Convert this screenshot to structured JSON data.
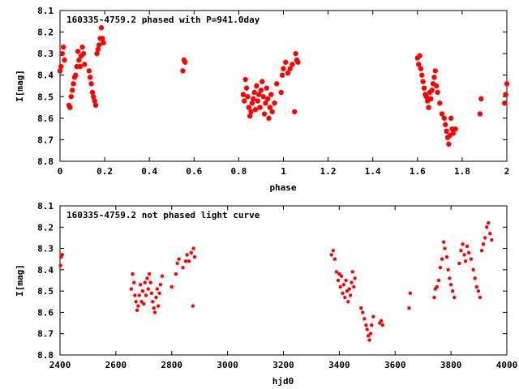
{
  "marker_color": "#ff0000",
  "chart_data": [
    {
      "type": "scatter",
      "title": "160335-4759.2 phased with P=941.0day",
      "xlabel": "phase",
      "ylabel": "I[mag]",
      "xlim": [
        0,
        2
      ],
      "ylim": [
        8.8,
        8.1
      ],
      "y_inverted": true,
      "grid": false,
      "legend": "none",
      "xticks": [
        "0",
        "0.2",
        "0.4",
        "0.6",
        "0.8",
        "1",
        "1.2",
        "1.4",
        "1.6",
        "1.8",
        "2"
      ],
      "xtick_values": [
        0,
        0.2,
        0.4,
        0.6,
        0.8,
        1,
        1.2,
        1.4,
        1.6,
        1.8,
        2
      ],
      "yticks": [
        "8.1",
        "8.2",
        "8.3",
        "8.4",
        "8.5",
        "8.6",
        "8.7",
        "8.8"
      ],
      "ytick_values": [
        8.1,
        8.2,
        8.3,
        8.4,
        8.5,
        8.6,
        8.7,
        8.8
      ],
      "points": [
        [
          0.0,
          8.38
        ],
        [
          0.005,
          8.36
        ],
        [
          0.01,
          8.3
        ],
        [
          0.015,
          8.27
        ],
        [
          0.02,
          8.33
        ],
        [
          0.04,
          8.54
        ],
        [
          0.045,
          8.55
        ],
        [
          0.05,
          8.5
        ],
        [
          0.055,
          8.47
        ],
        [
          0.06,
          8.44
        ],
        [
          0.065,
          8.41
        ],
        [
          0.07,
          8.4
        ],
        [
          0.075,
          8.36
        ],
        [
          0.08,
          8.29
        ],
        [
          0.085,
          8.33
        ],
        [
          0.09,
          8.36
        ],
        [
          0.095,
          8.31
        ],
        [
          0.1,
          8.27
        ],
        [
          0.105,
          8.3
        ],
        [
          0.11,
          8.35
        ],
        [
          0.13,
          8.38
        ],
        [
          0.135,
          8.41
        ],
        [
          0.14,
          8.44
        ],
        [
          0.145,
          8.48
        ],
        [
          0.15,
          8.5
        ],
        [
          0.155,
          8.52
        ],
        [
          0.16,
          8.54
        ],
        [
          0.165,
          8.3
        ],
        [
          0.17,
          8.28
        ],
        [
          0.175,
          8.26
        ],
        [
          0.18,
          8.23
        ],
        [
          0.185,
          8.18
        ],
        [
          0.19,
          8.23
        ],
        [
          0.195,
          8.25
        ],
        [
          0.55,
          8.38
        ],
        [
          0.555,
          8.33
        ],
        [
          0.56,
          8.34
        ],
        [
          0.82,
          8.49
        ],
        [
          0.825,
          8.52
        ],
        [
          0.83,
          8.42
        ],
        [
          0.835,
          8.46
        ],
        [
          0.84,
          8.5
        ],
        [
          0.845,
          8.55
        ],
        [
          0.85,
          8.59
        ],
        [
          0.855,
          8.57
        ],
        [
          0.86,
          8.53
        ],
        [
          0.865,
          8.51
        ],
        [
          0.87,
          8.48
        ],
        [
          0.875,
          8.56
        ],
        [
          0.88,
          8.45
        ],
        [
          0.885,
          8.52
        ],
        [
          0.89,
          8.49
        ],
        [
          0.895,
          8.55
        ],
        [
          0.9,
          8.47
        ],
        [
          0.905,
          8.43
        ],
        [
          0.91,
          8.5
        ],
        [
          0.915,
          8.58
        ],
        [
          0.92,
          8.53
        ],
        [
          0.925,
          8.46
        ],
        [
          0.93,
          8.51
        ],
        [
          0.935,
          8.6
        ],
        [
          0.94,
          8.55
        ],
        [
          0.945,
          8.49
        ],
        [
          0.95,
          8.57
        ],
        [
          0.96,
          8.53
        ],
        [
          0.97,
          8.44
        ],
        [
          0.99,
          8.48
        ],
        [
          0.995,
          8.4
        ],
        [
          1.0,
          8.37
        ],
        [
          1.01,
          8.34
        ],
        [
          1.02,
          8.39
        ],
        [
          1.03,
          8.37
        ],
        [
          1.04,
          8.35
        ],
        [
          1.05,
          8.57
        ],
        [
          1.055,
          8.3
        ],
        [
          1.06,
          8.33
        ],
        [
          1.065,
          8.34
        ],
        [
          1.6,
          8.32
        ],
        [
          1.605,
          8.35
        ],
        [
          1.61,
          8.31
        ],
        [
          1.615,
          8.37
        ],
        [
          1.62,
          8.4
        ],
        [
          1.625,
          8.43
        ],
        [
          1.63,
          8.46
        ],
        [
          1.635,
          8.49
        ],
        [
          1.64,
          8.5
        ],
        [
          1.645,
          8.52
        ],
        [
          1.65,
          8.55
        ],
        [
          1.655,
          8.48
        ],
        [
          1.66,
          8.51
        ],
        [
          1.665,
          8.47
        ],
        [
          1.67,
          8.44
        ],
        [
          1.675,
          8.41
        ],
        [
          1.68,
          8.38
        ],
        [
          1.685,
          8.45
        ],
        [
          1.69,
          8.48
        ],
        [
          1.7,
          8.53
        ],
        [
          1.71,
          8.58
        ],
        [
          1.72,
          8.6
        ],
        [
          1.725,
          8.63
        ],
        [
          1.73,
          8.66
        ],
        [
          1.735,
          8.69
        ],
        [
          1.74,
          8.72
        ],
        [
          1.745,
          8.68
        ],
        [
          1.75,
          8.6
        ],
        [
          1.755,
          8.65
        ],
        [
          1.76,
          8.67
        ],
        [
          1.77,
          8.65
        ],
        [
          1.88,
          8.58
        ],
        [
          1.885,
          8.51
        ],
        [
          1.99,
          8.53
        ],
        [
          1.995,
          8.49
        ],
        [
          2.0,
          8.44
        ]
      ]
    },
    {
      "type": "scatter",
      "title": "160335-4759.2 not phased light curve",
      "xlabel": "hjd0",
      "ylabel": "I[mag]",
      "xlim": [
        2400,
        4000
      ],
      "ylim": [
        8.8,
        8.1
      ],
      "y_inverted": true,
      "grid": false,
      "legend": "none",
      "xticks": [
        "2400",
        "2600",
        "2800",
        "3000",
        "3200",
        "3400",
        "3600",
        "3800",
        "4000"
      ],
      "xtick_values": [
        2400,
        2600,
        2800,
        3000,
        3200,
        3400,
        3600,
        3800,
        4000
      ],
      "yticks": [
        "8.1",
        "8.2",
        "8.3",
        "8.4",
        "8.5",
        "8.6",
        "8.7",
        "8.8"
      ],
      "ytick_values": [
        8.1,
        8.2,
        8.3,
        8.4,
        8.5,
        8.6,
        8.7,
        8.8
      ],
      "points": [
        [
          2402,
          8.38
        ],
        [
          2404,
          8.34
        ],
        [
          2406,
          8.33
        ],
        [
          2408,
          8.33
        ],
        [
          2655,
          8.49
        ],
        [
          2660,
          8.42
        ],
        [
          2665,
          8.46
        ],
        [
          2668,
          8.52
        ],
        [
          2672,
          8.55
        ],
        [
          2676,
          8.59
        ],
        [
          2680,
          8.57
        ],
        [
          2684,
          8.52
        ],
        [
          2688,
          8.47
        ],
        [
          2692,
          8.55
        ],
        [
          2696,
          8.5
        ],
        [
          2700,
          8.56
        ],
        [
          2704,
          8.46
        ],
        [
          2708,
          8.52
        ],
        [
          2712,
          8.44
        ],
        [
          2716,
          8.49
        ],
        [
          2720,
          8.42
        ],
        [
          2724,
          8.46
        ],
        [
          2728,
          8.51
        ],
        [
          2732,
          8.55
        ],
        [
          2736,
          8.58
        ],
        [
          2740,
          8.6
        ],
        [
          2744,
          8.53
        ],
        [
          2748,
          8.49
        ],
        [
          2752,
          8.57
        ],
        [
          2756,
          8.51
        ],
        [
          2760,
          8.47
        ],
        [
          2766,
          8.43
        ],
        [
          2800,
          8.48
        ],
        [
          2815,
          8.42
        ],
        [
          2820,
          8.37
        ],
        [
          2826,
          8.35
        ],
        [
          2840,
          8.39
        ],
        [
          2850,
          8.36
        ],
        [
          2855,
          8.33
        ],
        [
          2862,
          8.36
        ],
        [
          2870,
          8.32
        ],
        [
          2876,
          8.57
        ],
        [
          2878,
          8.3
        ],
        [
          2882,
          8.34
        ],
        [
          3372,
          8.33
        ],
        [
          3378,
          8.31
        ],
        [
          3384,
          8.35
        ],
        [
          3390,
          8.41
        ],
        [
          3396,
          8.45
        ],
        [
          3400,
          8.42
        ],
        [
          3404,
          8.48
        ],
        [
          3408,
          8.43
        ],
        [
          3412,
          8.51
        ],
        [
          3416,
          8.47
        ],
        [
          3420,
          8.53
        ],
        [
          3424,
          8.45
        ],
        [
          3428,
          8.5
        ],
        [
          3432,
          8.55
        ],
        [
          3436,
          8.49
        ],
        [
          3440,
          8.52
        ],
        [
          3444,
          8.46
        ],
        [
          3448,
          8.41
        ],
        [
          3452,
          8.48
        ],
        [
          3456,
          8.44
        ],
        [
          3478,
          8.58
        ],
        [
          3484,
          8.6
        ],
        [
          3490,
          8.63
        ],
        [
          3496,
          8.66
        ],
        [
          3500,
          8.68
        ],
        [
          3504,
          8.71
        ],
        [
          3508,
          8.73
        ],
        [
          3512,
          8.7
        ],
        [
          3516,
          8.66
        ],
        [
          3522,
          8.62
        ],
        [
          3545,
          8.65
        ],
        [
          3550,
          8.64
        ],
        [
          3555,
          8.66
        ],
        [
          3650,
          8.58
        ],
        [
          3654,
          8.51
        ],
        [
          3740,
          8.53
        ],
        [
          3744,
          8.49
        ],
        [
          3750,
          8.48
        ],
        [
          3756,
          8.45
        ],
        [
          3762,
          8.39
        ],
        [
          3768,
          8.35
        ],
        [
          3774,
          8.27
        ],
        [
          3778,
          8.3
        ],
        [
          3785,
          8.34
        ],
        [
          3790,
          8.4
        ],
        [
          3795,
          8.44
        ],
        [
          3800,
          8.47
        ],
        [
          3806,
          8.5
        ],
        [
          3812,
          8.53
        ],
        [
          3830,
          8.37
        ],
        [
          3836,
          8.31
        ],
        [
          3842,
          8.28
        ],
        [
          3848,
          8.33
        ],
        [
          3852,
          8.36
        ],
        [
          3858,
          8.29
        ],
        [
          3864,
          8.32
        ],
        [
          3872,
          8.35
        ],
        [
          3880,
          8.4
        ],
        [
          3886,
          8.44
        ],
        [
          3892,
          8.48
        ],
        [
          3898,
          8.5
        ],
        [
          3904,
          8.53
        ],
        [
          3910,
          8.31
        ],
        [
          3916,
          8.28
        ],
        [
          3922,
          8.25
        ],
        [
          3928,
          8.2
        ],
        [
          3934,
          8.18
        ],
        [
          3940,
          8.23
        ],
        [
          3946,
          8.26
        ]
      ]
    }
  ]
}
